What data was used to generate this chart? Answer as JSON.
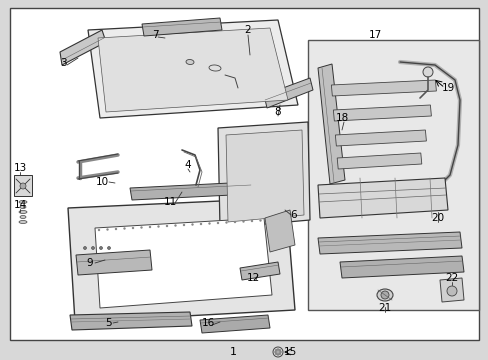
{
  "bg": "#d8d8d8",
  "white": "#ffffff",
  "light_gray": "#e8e8e8",
  "med_gray": "#b0b0b0",
  "dark_gray": "#505050",
  "black": "#111111",
  "fig_width": 4.89,
  "fig_height": 3.6,
  "dpi": 100
}
